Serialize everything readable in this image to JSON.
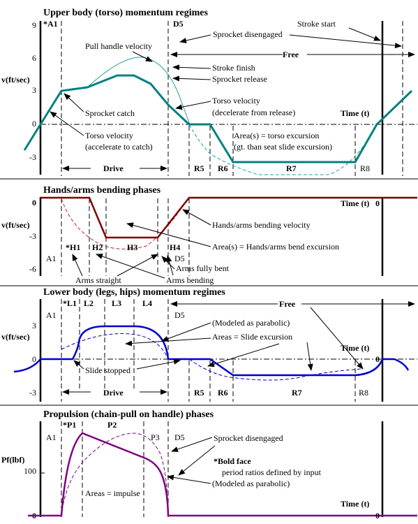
{
  "colors": {
    "teal": "#008080",
    "maroon": "#800000",
    "blue": "#0000cc",
    "purple": "#800080",
    "thin_teal": "#20a0a0",
    "dashed_red": "#c02020"
  },
  "panel1": {
    "title": "Upper body (torso) momentum regimes",
    "ylabel": "v(ft/sec)",
    "ticks": [
      "9",
      "6",
      "3",
      "0",
      "-3"
    ],
    "phase_A1": "*A1",
    "phase_D5": "D5",
    "time_label": "Time (t)",
    "drive": "Drive",
    "free": "Free",
    "r5": "R5",
    "r6": "R6",
    "r7": "R7",
    "r8": "R8",
    "labels": {
      "pull_handle_velocity": "Pull handle velocity",
      "sprocket_disengaged": "Sprocket disengaged",
      "stroke_start": "Stroke start",
      "stroke_finish": "Stroke finish",
      "sprocket_release": "Sprocket release",
      "torso_velocity_release": "Torso velocity",
      "decelerate_from_release": "(decelerate from release)",
      "sprocket_catch": "Sprocket catch",
      "torso_velocity_catch": "Torso velocity",
      "accelerate_to_catch": "(accelerate to catch)",
      "area_torso": "Area(s) = torso excursion",
      "area_torso_note": "(gt. than seat slide excursion)"
    }
  },
  "panel2": {
    "title": "Hands/arms bending phases",
    "ylabel": "v(ft/sec)",
    "ticks": [
      "0",
      "-3",
      "-6"
    ],
    "time_label": "Time (t)",
    "zero_right": "0",
    "a1": "A1",
    "d5": "D5",
    "h1": "*H1",
    "h2": "H2",
    "h3": "H3",
    "h4": "H4",
    "labels": {
      "hands_arms_velocity": "Hands/arms bending velocity",
      "area_hands": "Area(s) =  Hands/arms bend excursion",
      "arms_fully_bent": "Arms fully bent",
      "arms_straight": "Arms straight",
      "arms_bending": "Arms bending"
    }
  },
  "panel3": {
    "title": "Lower body (legs, hips) momentum regimes",
    "ylabel": "v(ft/sec)",
    "ticks": [
      "3",
      "0",
      "-3"
    ],
    "a1": "A1",
    "d5": "D5",
    "l1": "*L1",
    "l2": "L2",
    "l3": "L3",
    "l4": "L4",
    "free": "Free",
    "drive": "Drive",
    "time_label": "Time (t)",
    "zero_right": "0",
    "r5": "R5",
    "r6": "R6",
    "r7": "R7",
    "r8": "R8",
    "labels": {
      "modeled_parabolic": "(Modeled as parabolic)",
      "areas_slide": "Areas  =  Slide excursion",
      "slide_stopped": "Slide stopped"
    }
  },
  "panel4": {
    "title": "Propulsion (chain-pull on handle) phases",
    "ylabel": "Pf(lbf)",
    "ticks": [
      "100",
      "0"
    ],
    "a1": "A1",
    "p1": "*P1",
    "p2": "P2",
    "p3": "P3",
    "d5": "D5",
    "time_label": "Time (t)",
    "zero_right": "0",
    "labels": {
      "sprocket_disengaged": "Sprocket disengaged",
      "bold_face": "*Bold face",
      "period_ratios": "period ratios defined by input",
      "modeled_parabolic": "(Modeled as parabolic)",
      "areas_impulse": "Areas = impulse"
    }
  }
}
